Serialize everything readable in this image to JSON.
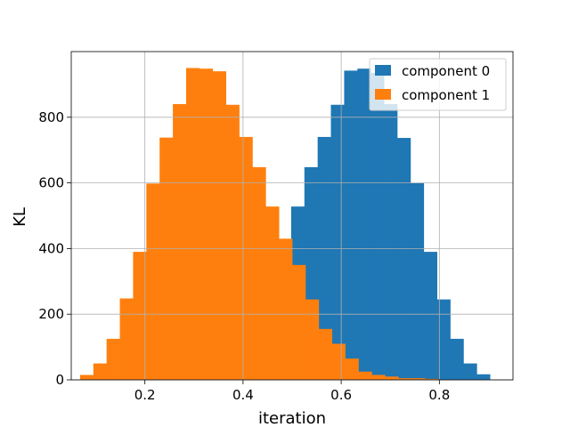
{
  "chart_data": {
    "type": "bar",
    "subtype": "histogram",
    "xlabel": "iteration",
    "ylabel": "KL",
    "xlim": [
      0.05,
      0.95
    ],
    "ylim": [
      0,
      1000
    ],
    "xticks": [
      0.2,
      0.4,
      0.6,
      0.8
    ],
    "xtick_labels": [
      "0.2",
      "0.4",
      "0.6",
      "0.8"
    ],
    "yticks": [
      0,
      200,
      400,
      600,
      800
    ],
    "ytick_labels": [
      "0",
      "200",
      "400",
      "600",
      "800"
    ],
    "grid": true,
    "legend_position": "top-right",
    "series": [
      {
        "name": "component 0",
        "color": "#1f77b4",
        "bin_edges": [
          0.498,
          0.525,
          0.552,
          0.579,
          0.606,
          0.633,
          0.66,
          0.687,
          0.714,
          0.741,
          0.768,
          0.795,
          0.822,
          0.849,
          0.876,
          0.903,
          0.93
        ],
        "values": [
          528,
          648,
          740,
          838,
          942,
          948,
          935,
          840,
          737,
          600,
          390,
          245,
          125,
          50,
          17,
          0
        ]
      },
      {
        "name": "component 1",
        "color": "#ff7f0e",
        "bin_edges": [
          0.068,
          0.095,
          0.122,
          0.149,
          0.176,
          0.203,
          0.23,
          0.257,
          0.284,
          0.311,
          0.338,
          0.365,
          0.392,
          0.419,
          0.446,
          0.473,
          0.5,
          0.527,
          0.554,
          0.581,
          0.608,
          0.635,
          0.662,
          0.689,
          0.716,
          0.743,
          0.77,
          0.797
        ],
        "values": [
          15,
          50,
          125,
          248,
          390,
          598,
          738,
          840,
          950,
          948,
          940,
          838,
          740,
          648,
          528,
          430,
          350,
          245,
          155,
          110,
          65,
          25,
          15,
          10,
          5,
          5,
          3
        ]
      }
    ]
  }
}
